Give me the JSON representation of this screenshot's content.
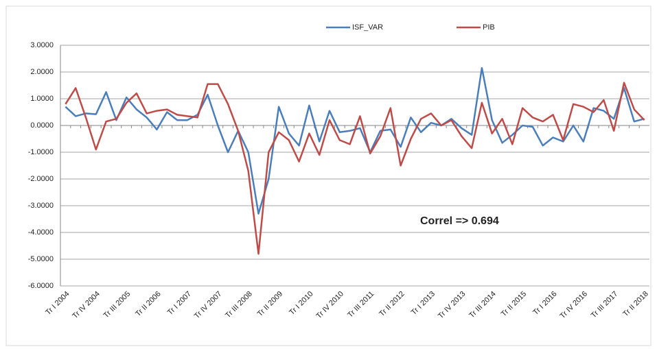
{
  "chart_data": {
    "type": "line",
    "categories": [
      "Tr I 2004",
      null,
      null,
      "Tr IV 2004",
      null,
      null,
      "Tr III 2005",
      null,
      null,
      "Tr II 2006",
      null,
      null,
      "Tr I 2007",
      null,
      null,
      "Tr IV 2007",
      null,
      null,
      "Tr III 2008",
      null,
      null,
      "Tr II 2009",
      null,
      null,
      "Tr I 2010",
      null,
      null,
      "Tr IV 2010",
      null,
      null,
      "Tr III 2011",
      null,
      null,
      "Tr II 2012",
      null,
      null,
      "Tr I 2013",
      null,
      null,
      "Tr IV 2013",
      null,
      null,
      "Tr III 2014",
      null,
      null,
      "Tr II 2015",
      null,
      null,
      "Tr I 2016",
      null,
      null,
      "Tr IV 2016",
      null,
      null,
      "Tr III 2017",
      null,
      null,
      "Tr II 2018"
    ],
    "series": [
      {
        "name": "ISF_VAR",
        "color": "#4a7ebb",
        "values": [
          0.7,
          0.35,
          0.45,
          0.42,
          1.25,
          0.2,
          1.05,
          0.6,
          0.3,
          -0.15,
          0.5,
          0.2,
          0.2,
          0.4,
          1.15,
          0.0,
          -1.0,
          -0.2,
          -1.0,
          -3.3,
          -2.0,
          0.7,
          -0.3,
          -0.75,
          0.75,
          -0.6,
          0.55,
          -0.25,
          -0.2,
          -0.1,
          -1.0,
          -0.2,
          -0.15,
          -0.8,
          0.3,
          -0.25,
          0.1,
          0.0,
          0.25,
          -0.1,
          -0.35,
          2.15,
          0.2,
          -0.65,
          -0.35,
          0.0,
          -0.05,
          -0.75,
          -0.45,
          -0.6,
          0.0,
          -0.6,
          0.65,
          0.55,
          0.25,
          1.4,
          0.15,
          0.25
        ]
      },
      {
        "name": "PIB",
        "color": "#be4b48",
        "values": [
          0.8,
          1.4,
          0.3,
          -0.9,
          0.15,
          0.25,
          0.85,
          1.2,
          0.45,
          0.55,
          0.6,
          0.4,
          0.35,
          0.3,
          1.55,
          1.55,
          0.8,
          -0.2,
          -1.7,
          -4.8,
          -1.0,
          -0.25,
          -0.55,
          -1.35,
          -0.3,
          -1.1,
          0.2,
          -0.55,
          -0.7,
          0.35,
          -1.05,
          -0.4,
          0.65,
          -1.5,
          -0.5,
          0.25,
          0.45,
          0.0,
          0.2,
          -0.4,
          -0.85,
          0.85,
          -0.3,
          0.25,
          -0.7,
          0.65,
          0.3,
          0.15,
          0.4,
          -0.55,
          0.8,
          0.7,
          0.5,
          0.95,
          -0.2,
          1.6,
          0.6,
          0.2
        ]
      }
    ],
    "ylim": [
      -6,
      3
    ],
    "yticks": [
      {
        "value": -6,
        "label": "-6.0000"
      },
      {
        "value": -5,
        "label": "-5.0000"
      },
      {
        "value": -4,
        "label": "-4.0000"
      },
      {
        "value": -3,
        "label": "-3.0000"
      },
      {
        "value": -2,
        "label": "-2.0000"
      },
      {
        "value": -1,
        "label": "-1.0000"
      },
      {
        "value": 0,
        "label": "0.0000"
      },
      {
        "value": 1,
        "label": "1.0000"
      },
      {
        "value": 2,
        "label": "2.0000"
      },
      {
        "value": 3,
        "label": "3.0000"
      }
    ],
    "grid": true,
    "legend": "top",
    "annotation": "Correl => 0.694"
  }
}
